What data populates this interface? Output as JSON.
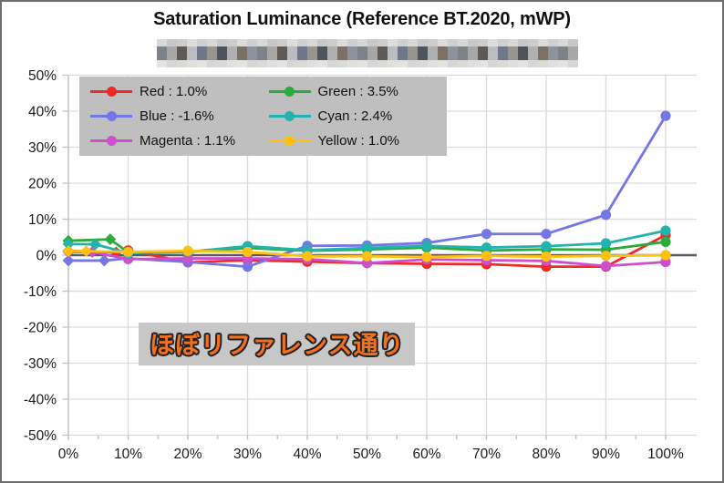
{
  "chart": {
    "title": "Saturation Luminance (Reference BT.2020, mWP)",
    "subtitle_redacted": "pixelated-redacted-text",
    "annotation": {
      "text": "ほぼリファレンス通り"
    },
    "legend": [
      {
        "name": "Red",
        "label": "Red : 1.0%",
        "color": "#ee2b24"
      },
      {
        "name": "Blue",
        "label": "Blue : -1.6%",
        "color": "#7476e4"
      },
      {
        "name": "Magenta",
        "label": "Magenta : 1.1%",
        "color": "#ce4ece"
      },
      {
        "name": "Green",
        "label": "Green : 3.5%",
        "color": "#2ea93c"
      },
      {
        "name": "Cyan",
        "label": "Cyan : 2.4%",
        "color": "#23b3ad"
      },
      {
        "name": "Yellow",
        "label": "Yellow : 1.0%",
        "color": "#ffc011"
      }
    ],
    "colors": {
      "gridline": "#d9d9d9",
      "axis": "#bfbfbf",
      "zero_line": "#595959",
      "legend_bg": "#bfbfbf",
      "annotation_bg": "#c7c7c7",
      "annotation_text": "#f4701d",
      "tick_label": "#1a1a1a"
    }
  },
  "chart_data": {
    "type": "line",
    "title": "Saturation Luminance (Reference BT.2020, mWP)",
    "xlabel": "",
    "ylabel": "",
    "xlim": [
      0,
      100
    ],
    "ylim": [
      -50,
      50
    ],
    "grid": true,
    "legend_position": "top-left-inside",
    "x_tick_labels": [
      "0%",
      "10%",
      "20%",
      "30%",
      "40%",
      "50%",
      "60%",
      "70%",
      "80%",
      "90%",
      "100%"
    ],
    "x_tick_values": [
      0,
      10,
      20,
      30,
      40,
      50,
      60,
      70,
      80,
      90,
      100
    ],
    "x_minor_tick_step": 5,
    "y_tick_labels": [
      "50%",
      "40%",
      "30%",
      "20%",
      "10%",
      "0%",
      "-10%",
      "-20%",
      "-30%",
      "-40%",
      "-50%"
    ],
    "y_tick_values": [
      50,
      40,
      30,
      20,
      10,
      0,
      -10,
      -20,
      -30,
      -40,
      -50
    ],
    "marker_note": "first 2 points of each series are diamond markers, rest are circles",
    "series": [
      {
        "name": "Red",
        "average": "1.0%",
        "color": "#ee2b24",
        "diamond_count": 2,
        "points": [
          [
            0,
            1.2
          ],
          [
            8,
            0.8
          ],
          [
            10,
            1.3
          ],
          [
            20,
            -2.0
          ],
          [
            30,
            -1.4
          ],
          [
            40,
            -1.8
          ],
          [
            50,
            -2.2
          ],
          [
            60,
            -2.4
          ],
          [
            70,
            -2.5
          ],
          [
            80,
            -3.2
          ],
          [
            90,
            -3.2
          ],
          [
            100,
            5.6
          ]
        ]
      },
      {
        "name": "Blue",
        "average": "-1.6%",
        "color": "#7476e4",
        "diamond_count": 2,
        "points": [
          [
            0,
            -1.5
          ],
          [
            6,
            -1.5
          ],
          [
            10,
            -0.9
          ],
          [
            20,
            -1.9
          ],
          [
            30,
            -3.2
          ],
          [
            40,
            2.6
          ],
          [
            50,
            2.7
          ],
          [
            60,
            3.4
          ],
          [
            70,
            5.9
          ],
          [
            80,
            5.9
          ],
          [
            90,
            11.2
          ],
          [
            100,
            38.7
          ]
        ]
      },
      {
        "name": "Magenta",
        "average": "1.1%",
        "color": "#ce4ece",
        "diamond_count": 2,
        "points": [
          [
            0,
            0.9
          ],
          [
            4,
            0.9
          ],
          [
            10,
            -1.1
          ],
          [
            20,
            -0.9
          ],
          [
            30,
            -0.9
          ],
          [
            40,
            -1.1
          ],
          [
            50,
            -2.2
          ],
          [
            60,
            -1.2
          ],
          [
            70,
            -1.4
          ],
          [
            80,
            -1.6
          ],
          [
            90,
            -3.0
          ],
          [
            100,
            -1.9
          ]
        ]
      },
      {
        "name": "Green",
        "average": "3.5%",
        "color": "#2ea93c",
        "diamond_count": 2,
        "points": [
          [
            0,
            4.0
          ],
          [
            7,
            4.4
          ],
          [
            10,
            0.8
          ],
          [
            20,
            0.9
          ],
          [
            30,
            2.0
          ],
          [
            40,
            1.2
          ],
          [
            50,
            1.6
          ],
          [
            60,
            2.1
          ],
          [
            70,
            1.3
          ],
          [
            80,
            1.6
          ],
          [
            90,
            1.5
          ],
          [
            100,
            3.7
          ]
        ]
      },
      {
        "name": "Cyan",
        "average": "2.4%",
        "color": "#23b3ad",
        "diamond_count": 2,
        "points": [
          [
            0,
            3.1
          ],
          [
            4.5,
            3.0
          ],
          [
            10,
            0.6
          ],
          [
            20,
            0.9
          ],
          [
            30,
            2.5
          ],
          [
            40,
            1.4
          ],
          [
            50,
            2.0
          ],
          [
            60,
            2.6
          ],
          [
            70,
            2.1
          ],
          [
            80,
            2.5
          ],
          [
            90,
            3.3
          ],
          [
            100,
            6.8
          ]
        ]
      },
      {
        "name": "Yellow",
        "average": "1.0%",
        "color": "#ffc011",
        "diamond_count": 2,
        "points": [
          [
            0,
            1.1
          ],
          [
            3,
            1.1
          ],
          [
            10,
            0.9
          ],
          [
            20,
            1.2
          ],
          [
            30,
            0.9
          ],
          [
            40,
            -0.3
          ],
          [
            50,
            -0.3
          ],
          [
            60,
            -0.5
          ],
          [
            70,
            -0.2
          ],
          [
            80,
            -0.4
          ],
          [
            90,
            -0.2
          ],
          [
            100,
            0.0
          ]
        ]
      }
    ]
  }
}
